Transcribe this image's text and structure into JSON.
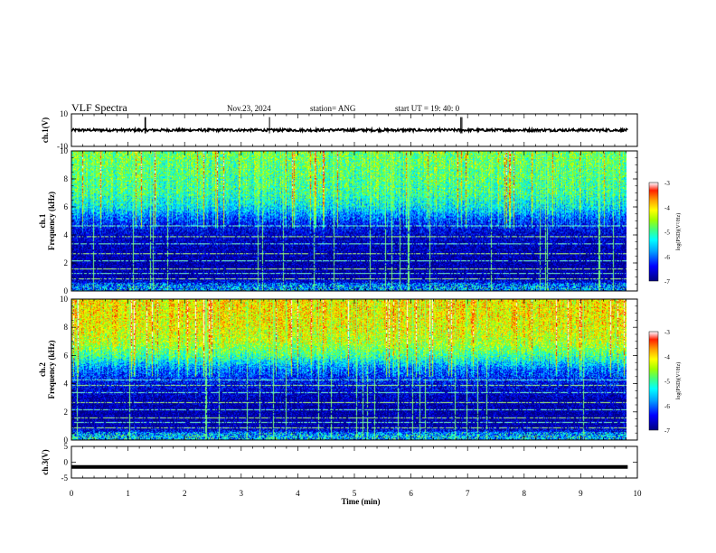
{
  "header": {
    "title": "VLF Spectra",
    "date": "Nov.23, 2024",
    "station": "station= ANG",
    "start": "start  UT =   19: 40: 0"
  },
  "chart_data": [
    {
      "type": "line",
      "panel": "ch1-waveform",
      "ylabel": "ch.1(V)",
      "ylim": [
        -10,
        10
      ],
      "yticks": [
        "10",
        "-10"
      ],
      "baseline": 0,
      "spikes_min": [
        1.3,
        1.31,
        3.5,
        6.88,
        6.9
      ]
    },
    {
      "type": "heatmap",
      "panel": "ch1-spectrogram",
      "ylabel": "ch.1\nFrequency (kHz)",
      "ylim": [
        0,
        10
      ],
      "yticks": [
        "0",
        "2",
        "4",
        "6",
        "8",
        "10"
      ],
      "colorbar": {
        "label": "log(PSD)(V²/Hz)",
        "ticks": [
          "-3",
          "-4",
          "-5",
          "-6",
          "-7"
        ],
        "range": [
          -7,
          -3
        ]
      },
      "mean_power_profile": [
        {
          "f": 0.3,
          "v": -6.2
        },
        {
          "f": 1.0,
          "v": -6.9
        },
        {
          "f": 2.0,
          "v": -6.9
        },
        {
          "f": 3.0,
          "v": -6.8
        },
        {
          "f": 4.0,
          "v": -6.7
        },
        {
          "f": 5.0,
          "v": -6.2
        },
        {
          "f": 6.0,
          "v": -5.4
        },
        {
          "f": 7.0,
          "v": -5.0
        },
        {
          "f": 8.0,
          "v": -4.9
        },
        {
          "f": 9.0,
          "v": -4.8
        },
        {
          "f": 10.0,
          "v": -4.7
        }
      ],
      "tone_lines_khz": [
        0.9,
        1.3,
        1.6,
        2.2,
        2.7,
        3.4,
        3.9,
        4.7
      ]
    },
    {
      "type": "heatmap",
      "panel": "ch2-spectrogram",
      "ylabel": "ch.2\nFrequency (kHz)",
      "ylim": [
        0,
        10
      ],
      "yticks": [
        "0",
        "2",
        "4",
        "6",
        "8",
        "10"
      ],
      "colorbar": {
        "label": "log(PSD)(V²/Hz)",
        "ticks": [
          "-3",
          "-4",
          "-5",
          "-6",
          "-7"
        ],
        "range": [
          -7,
          -3
        ]
      },
      "mean_power_profile": [
        {
          "f": 0.3,
          "v": -6.0
        },
        {
          "f": 1.0,
          "v": -6.9
        },
        {
          "f": 2.0,
          "v": -6.9
        },
        {
          "f": 3.0,
          "v": -6.8
        },
        {
          "f": 4.0,
          "v": -6.5
        },
        {
          "f": 5.0,
          "v": -6.0
        },
        {
          "f": 6.0,
          "v": -5.0
        },
        {
          "f": 7.0,
          "v": -4.4
        },
        {
          "f": 8.0,
          "v": -4.2
        },
        {
          "f": 9.0,
          "v": -4.1
        },
        {
          "f": 10.0,
          "v": -4.1
        }
      ],
      "tone_lines_khz": [
        0.9,
        1.3,
        1.6,
        2.2,
        2.7,
        3.4,
        3.9,
        4.3
      ]
    },
    {
      "type": "line",
      "panel": "ch3-waveform",
      "ylabel": "ch.3(V)",
      "ylim": [
        -5,
        5
      ],
      "yticks": [
        "5",
        "0",
        "-5"
      ],
      "baseline": -1.5
    }
  ],
  "xaxis": {
    "label": "Time (min)",
    "xlim": [
      0,
      10
    ],
    "data_end_min": 9.83,
    "ticks": [
      "0",
      "1",
      "2",
      "3",
      "4",
      "5",
      "6",
      "7",
      "8",
      "9",
      "10"
    ]
  },
  "colors": {
    "colormap": [
      "#00007f",
      "#0000ff",
      "#00a0ff",
      "#00ffff",
      "#40ff80",
      "#a0ff00",
      "#ffff00",
      "#ffa000",
      "#ff2000",
      "#e00000",
      "#ffffff"
    ]
  }
}
